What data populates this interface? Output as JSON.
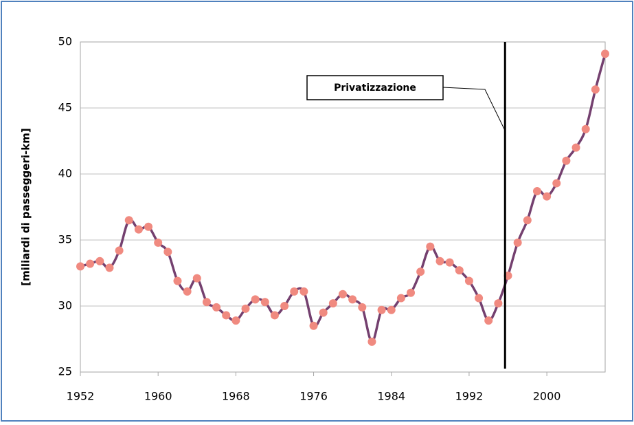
{
  "chart_data": {
    "type": "line",
    "y_label": "[miliardi di passeggeri-km]",
    "x": [
      1952,
      1953,
      1954,
      1955,
      1956,
      1957,
      1958,
      1959,
      1960,
      1961,
      1962,
      1963,
      1964,
      1965,
      1966,
      1967,
      1968,
      1969,
      1970,
      1971,
      1972,
      1973,
      1974,
      1975,
      1976,
      1977,
      1978,
      1979,
      1980,
      1981,
      1982,
      1983,
      1984,
      1985,
      1986,
      1987,
      1988,
      1989,
      1990,
      1991,
      1992,
      1993,
      1994,
      1995,
      1996,
      1997,
      1998,
      1999,
      2000,
      2001,
      2002,
      2003,
      2004,
      2005,
      2006
    ],
    "series": [
      {
        "color": "#74406f",
        "marker_color": "#f08a80",
        "values": [
          33.0,
          33.2,
          33.4,
          32.9,
          34.2,
          36.5,
          35.8,
          36.0,
          34.8,
          34.1,
          31.9,
          31.1,
          32.1,
          30.3,
          29.9,
          29.3,
          28.9,
          29.8,
          30.5,
          30.3,
          29.3,
          30.0,
          31.1,
          31.1,
          28.5,
          29.5,
          30.2,
          30.9,
          30.5,
          29.9,
          27.3,
          29.7,
          29.7,
          30.6,
          31.0,
          32.6,
          34.5,
          33.4,
          33.3,
          32.7,
          31.9,
          30.6,
          28.9,
          30.2,
          32.3,
          34.8,
          36.5,
          38.7,
          38.3,
          39.3,
          41.0,
          42.0,
          43.4,
          46.4,
          49.1
        ]
      }
    ],
    "xlim": [
      1952,
      2006
    ],
    "xticks": [
      1952,
      1960,
      1968,
      1976,
      1984,
      1992,
      2000
    ],
    "ylim": [
      25,
      50
    ],
    "yticks": [
      25,
      30,
      35,
      40,
      45,
      50
    ],
    "grid": true,
    "annotation": {
      "text": "Privatizzazione",
      "x": 1995.7,
      "color": "#ff0000"
    }
  }
}
